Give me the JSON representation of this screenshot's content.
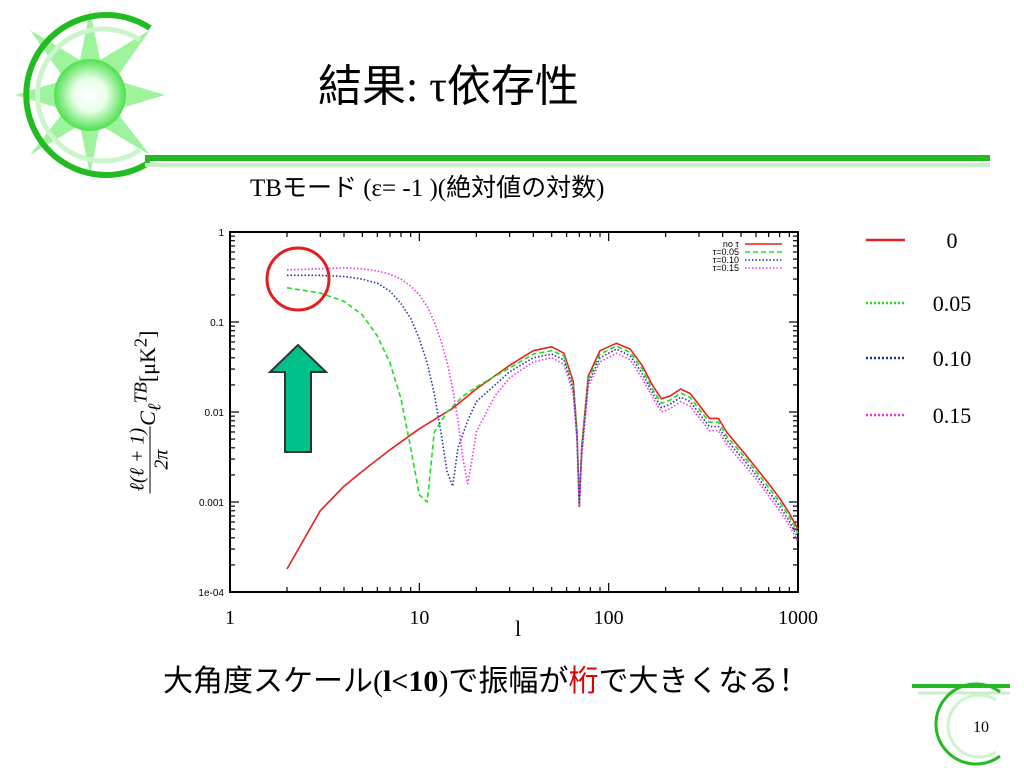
{
  "slide": {
    "title": "結果: τ依存性",
    "subtitle": "TBモード (ε= -1 )(絶対値の対数)",
    "bottom_text": {
      "part1": "大角度スケール(",
      "part2": "l<10",
      "part3": ")で振幅が",
      "emphasis": "桁",
      "part4": "で大きくなる！"
    },
    "page_number": "10"
  },
  "ylabel": {
    "numerator": "ℓ(ℓ + 1)",
    "denominator": "2π",
    "tail_C": "C",
    "tail_sub": "ℓ",
    "tail_sup": "TB",
    "tail_unit": "[μK",
    "tail_unit_sup": "2",
    "tail_close": "]"
  },
  "colors": {
    "accent_green": "#22bb22",
    "arrow_fill": "#00c08a",
    "highlight_circle": "#e02020"
  },
  "chart_data": {
    "type": "line",
    "title": "",
    "xlabel": "l",
    "ylabel": "ℓ(ℓ+1)/2π C_ℓ^TB [μK²]",
    "x_scale": "log",
    "y_scale": "log",
    "xlim": [
      1,
      1000
    ],
    "ylim": [
      0.0001,
      1
    ],
    "x_ticks": [
      "1",
      "10",
      "100",
      "1000"
    ],
    "y_ticks": [
      "1e-04",
      "0.001",
      "0.01",
      "0.1",
      "1"
    ],
    "inner_legend": {
      "placement": "top-right",
      "entries": [
        "no τ",
        "τ=0.05",
        "τ=0.10",
        "τ=0.15"
      ]
    },
    "outer_legend": {
      "placement": "right",
      "entries": [
        "0",
        "0.05",
        "0.10",
        "0.15"
      ]
    },
    "series": [
      {
        "name": "no τ",
        "tau": "0",
        "color": "#e82020",
        "dash": "solid",
        "points": [
          [
            2,
            0.00018
          ],
          [
            3,
            0.0008
          ],
          [
            4,
            0.0015
          ],
          [
            5,
            0.0022
          ],
          [
            7,
            0.0038
          ],
          [
            10,
            0.0065
          ],
          [
            15,
            0.011
          ],
          [
            20,
            0.018
          ],
          [
            30,
            0.033
          ],
          [
            40,
            0.048
          ],
          [
            50,
            0.053
          ],
          [
            58,
            0.045
          ],
          [
            65,
            0.022
          ],
          [
            68,
            0.006
          ],
          [
            70,
            0.0009
          ],
          [
            72,
            0.004
          ],
          [
            78,
            0.025
          ],
          [
            90,
            0.048
          ],
          [
            110,
            0.058
          ],
          [
            130,
            0.05
          ],
          [
            150,
            0.033
          ],
          [
            170,
            0.02
          ],
          [
            190,
            0.014
          ],
          [
            210,
            0.015
          ],
          [
            240,
            0.018
          ],
          [
            270,
            0.016
          ],
          [
            300,
            0.012
          ],
          [
            340,
            0.0085
          ],
          [
            380,
            0.0085
          ],
          [
            420,
            0.006
          ],
          [
            470,
            0.0045
          ],
          [
            520,
            0.0035
          ],
          [
            600,
            0.0024
          ],
          [
            700,
            0.0016
          ],
          [
            800,
            0.0011
          ],
          [
            900,
            0.00075
          ],
          [
            1000,
            0.0005
          ]
        ]
      },
      {
        "name": "τ=0.05",
        "tau": "0.05",
        "color": "#22dd22",
        "dash": "dashed",
        "points": [
          [
            2,
            0.24
          ],
          [
            3,
            0.21
          ],
          [
            4,
            0.17
          ],
          [
            5,
            0.12
          ],
          [
            6,
            0.07
          ],
          [
            7,
            0.035
          ],
          [
            8,
            0.014
          ],
          [
            9,
            0.004
          ],
          [
            10,
            0.0012
          ],
          [
            11,
            0.001
          ],
          [
            12,
            0.006
          ],
          [
            14,
            0.01
          ],
          [
            17,
            0.015
          ],
          [
            20,
            0.019
          ],
          [
            30,
            0.031
          ],
          [
            40,
            0.044
          ],
          [
            50,
            0.048
          ],
          [
            58,
            0.042
          ],
          [
            65,
            0.02
          ],
          [
            68,
            0.006
          ],
          [
            70,
            0.0009
          ],
          [
            72,
            0.004
          ],
          [
            78,
            0.023
          ],
          [
            90,
            0.044
          ],
          [
            110,
            0.054
          ],
          [
            130,
            0.046
          ],
          [
            150,
            0.03
          ],
          [
            170,
            0.018
          ],
          [
            190,
            0.0125
          ],
          [
            210,
            0.0135
          ],
          [
            240,
            0.0162
          ],
          [
            270,
            0.0145
          ],
          [
            300,
            0.0108
          ],
          [
            340,
            0.0077
          ],
          [
            380,
            0.0077
          ],
          [
            420,
            0.0054
          ],
          [
            470,
            0.0041
          ],
          [
            520,
            0.0032
          ],
          [
            600,
            0.0022
          ],
          [
            700,
            0.00145
          ],
          [
            800,
            0.001
          ],
          [
            900,
            0.00068
          ],
          [
            1000,
            0.00045
          ]
        ]
      },
      {
        "name": "τ=0.10",
        "tau": "0.10",
        "color": "#2233aa",
        "dash": "dotted",
        "points": [
          [
            2,
            0.33
          ],
          [
            3,
            0.33
          ],
          [
            4,
            0.32
          ],
          [
            5,
            0.3
          ],
          [
            6,
            0.27
          ],
          [
            7,
            0.22
          ],
          [
            8,
            0.16
          ],
          [
            9,
            0.11
          ],
          [
            10,
            0.065
          ],
          [
            11,
            0.035
          ],
          [
            12,
            0.016
          ],
          [
            13,
            0.006
          ],
          [
            14,
            0.0022
          ],
          [
            15,
            0.0015
          ],
          [
            16,
            0.004
          ],
          [
            18,
            0.008
          ],
          [
            20,
            0.013
          ],
          [
            30,
            0.028
          ],
          [
            40,
            0.04
          ],
          [
            50,
            0.044
          ],
          [
            58,
            0.038
          ],
          [
            65,
            0.018
          ],
          [
            68,
            0.005
          ],
          [
            70,
            0.0009
          ],
          [
            72,
            0.0035
          ],
          [
            78,
            0.021
          ],
          [
            90,
            0.04
          ],
          [
            110,
            0.05
          ],
          [
            130,
            0.042
          ],
          [
            150,
            0.027
          ],
          [
            170,
            0.0165
          ],
          [
            190,
            0.0112
          ],
          [
            210,
            0.0121
          ],
          [
            240,
            0.0146
          ],
          [
            270,
            0.013
          ],
          [
            300,
            0.0097
          ],
          [
            340,
            0.0069
          ],
          [
            380,
            0.0069
          ],
          [
            420,
            0.0049
          ],
          [
            470,
            0.0037
          ],
          [
            520,
            0.0029
          ],
          [
            600,
            0.002
          ],
          [
            700,
            0.0013
          ],
          [
            800,
            0.0009
          ],
          [
            900,
            0.00061
          ],
          [
            1000,
            0.0004
          ]
        ]
      },
      {
        "name": "τ=0.15",
        "tau": "0.15",
        "color": "#ee33ee",
        "dash": "dotted",
        "points": [
          [
            2,
            0.38
          ],
          [
            3,
            0.39
          ],
          [
            4,
            0.4
          ],
          [
            5,
            0.39
          ],
          [
            6,
            0.37
          ],
          [
            7,
            0.34
          ],
          [
            8,
            0.3
          ],
          [
            9,
            0.25
          ],
          [
            10,
            0.2
          ],
          [
            11,
            0.15
          ],
          [
            12,
            0.1
          ],
          [
            13,
            0.062
          ],
          [
            14,
            0.036
          ],
          [
            15,
            0.018
          ],
          [
            16,
            0.008
          ],
          [
            17,
            0.003
          ],
          [
            18,
            0.0016
          ],
          [
            19,
            0.003
          ],
          [
            20,
            0.006
          ],
          [
            25,
            0.015
          ],
          [
            30,
            0.024
          ],
          [
            40,
            0.036
          ],
          [
            50,
            0.04
          ],
          [
            58,
            0.034
          ],
          [
            65,
            0.016
          ],
          [
            68,
            0.005
          ],
          [
            70,
            0.0009
          ],
          [
            72,
            0.0032
          ],
          [
            78,
            0.019
          ],
          [
            90,
            0.036
          ],
          [
            110,
            0.045
          ],
          [
            130,
            0.038
          ],
          [
            150,
            0.024
          ],
          [
            170,
            0.0148
          ],
          [
            190,
            0.01
          ],
          [
            210,
            0.0108
          ],
          [
            240,
            0.013
          ],
          [
            270,
            0.0116
          ],
          [
            300,
            0.0087
          ],
          [
            340,
            0.0062
          ],
          [
            380,
            0.0062
          ],
          [
            420,
            0.0044
          ],
          [
            470,
            0.0033
          ],
          [
            520,
            0.0026
          ],
          [
            600,
            0.0018
          ],
          [
            700,
            0.00117
          ],
          [
            800,
            0.0008
          ],
          [
            900,
            0.00055
          ],
          [
            1000,
            0.00036
          ]
        ]
      }
    ]
  }
}
